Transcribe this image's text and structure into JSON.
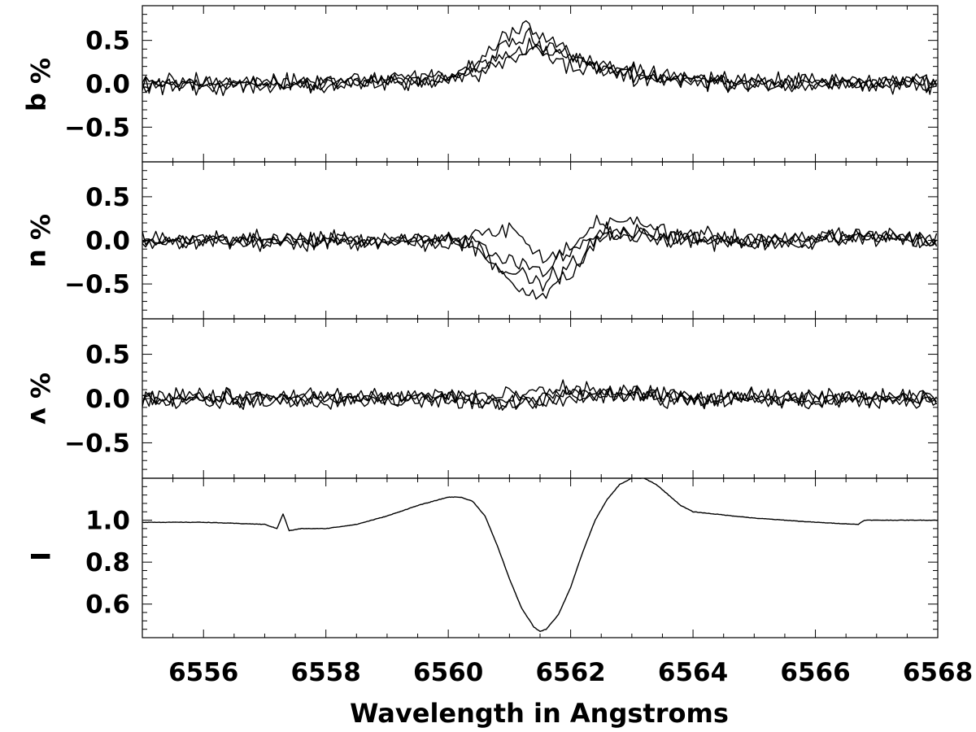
{
  "chart_data": [
    {
      "type": "line",
      "panel": "q",
      "ylabel": "% q",
      "xlim": [
        6555,
        6568
      ],
      "ylim": [
        -0.9,
        0.9
      ],
      "yticks": [
        -0.5,
        0.0,
        0.5
      ],
      "ytick_labels": [
        "−0.5",
        "0.0",
        "0.5"
      ],
      "feature": {
        "center": 6561.3,
        "sigma": 0.55,
        "peak_values": [
          0.55,
          0.45,
          0.7,
          0.38
        ]
      },
      "series": [
        {
          "x": [
            6555,
            6556,
            6557,
            6558,
            6559,
            6560,
            6560.5,
            6561,
            6561.3,
            6561.6,
            6562,
            6562.5,
            6563,
            6564,
            6565,
            6566,
            6567,
            6568
          ],
          "values": [
            0.0,
            0.0,
            0.0,
            0.02,
            0.05,
            0.08,
            0.2,
            0.45,
            0.55,
            0.4,
            0.2,
            0.2,
            0.12,
            0.05,
            0.02,
            0.0,
            0.0,
            0.0
          ]
        },
        {
          "x": [
            6555,
            6556,
            6557,
            6558,
            6559,
            6560,
            6560.5,
            6561,
            6561.3,
            6561.6,
            6562,
            6562.5,
            6563,
            6564,
            6565,
            6566,
            6567,
            6568
          ],
          "values": [
            0.0,
            0.0,
            0.02,
            0.0,
            0.03,
            0.05,
            0.15,
            0.35,
            0.45,
            0.42,
            0.3,
            0.18,
            0.1,
            0.05,
            0.0,
            0.0,
            0.0,
            0.0
          ]
        },
        {
          "x": [
            6555,
            6556,
            6557,
            6558,
            6559,
            6560,
            6560.5,
            6561,
            6561.3,
            6561.6,
            6562,
            6562.5,
            6563,
            6564,
            6565,
            6566,
            6567,
            6568
          ],
          "values": [
            0.0,
            0.0,
            0.0,
            0.0,
            0.02,
            0.06,
            0.25,
            0.6,
            0.7,
            0.55,
            0.3,
            0.15,
            0.08,
            0.04,
            0.0,
            0.0,
            0.0,
            0.0
          ]
        },
        {
          "x": [
            6555,
            6556,
            6557,
            6558,
            6559,
            6560,
            6560.5,
            6561,
            6561.3,
            6561.6,
            6562,
            6562.5,
            6563,
            6564,
            6565,
            6566,
            6567,
            6568
          ],
          "values": [
            0.0,
            0.0,
            0.0,
            0.0,
            0.02,
            0.04,
            0.1,
            0.25,
            0.38,
            0.4,
            0.32,
            0.2,
            0.12,
            0.05,
            0.02,
            0.0,
            0.0,
            0.0
          ]
        }
      ]
    },
    {
      "type": "line",
      "panel": "u",
      "ylabel": "% u",
      "xlim": [
        6555,
        6568
      ],
      "ylim": [
        -0.9,
        0.9
      ],
      "yticks": [
        -0.5,
        0.0,
        0.5
      ],
      "ytick_labels": [
        "−0.5",
        "0.0",
        "0.5"
      ],
      "series": [
        {
          "x": [
            6555,
            6556,
            6557,
            6558,
            6559,
            6560,
            6560.5,
            6561,
            6561.5,
            6562,
            6562.5,
            6563,
            6564,
            6565,
            6566,
            6567,
            6568
          ],
          "values": [
            0.0,
            0.0,
            0.0,
            0.0,
            0.0,
            0.0,
            -0.1,
            -0.45,
            -0.65,
            -0.4,
            0.05,
            0.05,
            0.0,
            0.0,
            0.0,
            0.05,
            0.0
          ]
        },
        {
          "x": [
            6555,
            6556,
            6557,
            6558,
            6559,
            6560,
            6560.5,
            6561,
            6561.5,
            6562,
            6562.5,
            6563,
            6564,
            6565,
            6566,
            6567,
            6568
          ],
          "values": [
            0.0,
            0.0,
            0.0,
            0.0,
            0.0,
            0.0,
            -0.1,
            -0.35,
            -0.5,
            -0.3,
            0.05,
            0.05,
            0.02,
            0.0,
            0.0,
            0.05,
            0.0
          ]
        },
        {
          "x": [
            6555,
            6556,
            6557,
            6558,
            6559,
            6560,
            6560.5,
            6561,
            6561.5,
            6562,
            6562.5,
            6563,
            6564,
            6565,
            6566,
            6567,
            6568
          ],
          "values": [
            0.0,
            0.0,
            0.0,
            0.0,
            0.0,
            0.0,
            0.05,
            0.15,
            -0.2,
            -0.1,
            0.25,
            0.2,
            0.05,
            0.0,
            0.0,
            0.05,
            0.0
          ]
        },
        {
          "x": [
            6555,
            6556,
            6557,
            6558,
            6559,
            6560,
            6560.5,
            6561,
            6561.5,
            6562,
            6562.5,
            6563,
            6564,
            6565,
            6566,
            6567,
            6568
          ],
          "values": [
            0.0,
            0.0,
            0.0,
            0.0,
            0.0,
            0.0,
            -0.05,
            -0.2,
            -0.35,
            -0.15,
            0.1,
            0.1,
            0.02,
            0.0,
            0.0,
            0.05,
            0.0
          ]
        }
      ]
    },
    {
      "type": "line",
      "panel": "v",
      "ylabel": "% v",
      "xlim": [
        6555,
        6568
      ],
      "ylim": [
        -0.9,
        0.9
      ],
      "yticks": [
        -0.5,
        0.0,
        0.5
      ],
      "ytick_labels": [
        "−0.5",
        "0.0",
        "0.5"
      ],
      "series": [
        {
          "x": [
            6555,
            6556,
            6557,
            6558,
            6559,
            6560,
            6561,
            6562,
            6563,
            6564,
            6565,
            6566,
            6567,
            6568
          ],
          "values": [
            0.0,
            0.0,
            0.0,
            0.0,
            0.0,
            0.02,
            -0.05,
            0.1,
            0.05,
            0.0,
            0.0,
            0.0,
            0.0,
            0.0
          ]
        },
        {
          "x": [
            6555,
            6556,
            6557,
            6558,
            6559,
            6560,
            6561,
            6562,
            6563,
            6564,
            6565,
            6566,
            6567,
            6568
          ],
          "values": [
            0.0,
            0.0,
            0.0,
            0.0,
            0.0,
            0.0,
            -0.08,
            0.05,
            0.05,
            0.0,
            0.0,
            0.0,
            0.0,
            0.0
          ]
        },
        {
          "x": [
            6555,
            6556,
            6557,
            6558,
            6559,
            6560,
            6561,
            6562,
            6563,
            6564,
            6565,
            6566,
            6567,
            6568
          ],
          "values": [
            0.0,
            0.0,
            0.0,
            0.0,
            0.0,
            0.05,
            0.02,
            0.1,
            0.08,
            0.0,
            0.0,
            0.0,
            0.0,
            0.0
          ]
        },
        {
          "x": [
            6555,
            6556,
            6557,
            6558,
            6559,
            6560,
            6561,
            6562,
            6563,
            6564,
            6565,
            6566,
            6567,
            6568
          ],
          "values": [
            0.0,
            0.0,
            0.0,
            0.0,
            0.0,
            0.0,
            -0.05,
            0.0,
            0.02,
            0.0,
            0.0,
            0.0,
            0.0,
            0.0
          ]
        }
      ]
    },
    {
      "type": "line",
      "panel": "I",
      "ylabel": "I",
      "xlabel": "Wavelength in Angstroms",
      "xlim": [
        6555,
        6568
      ],
      "ylim": [
        0.44,
        1.2
      ],
      "xticks": [
        6556,
        6558,
        6560,
        6562,
        6564,
        6566,
        6568
      ],
      "xtick_labels": [
        "6556",
        "6558",
        "6560",
        "6562",
        "6564",
        "6566",
        "6568"
      ],
      "yticks": [
        0.6,
        0.8,
        1.0
      ],
      "ytick_labels": [
        "0.6",
        "0.8",
        "1.0"
      ],
      "series": [
        {
          "x": [
            6555,
            6556,
            6557,
            6557.2,
            6557.3,
            6557.4,
            6557.6,
            6558,
            6558.5,
            6559,
            6559.5,
            6560,
            6560.2,
            6560.4,
            6560.6,
            6560.8,
            6561,
            6561.2,
            6561.4,
            6561.5,
            6561.6,
            6561.8,
            6562,
            6562.2,
            6562.4,
            6562.6,
            6562.8,
            6563,
            6563.2,
            6563.4,
            6563.6,
            6563.8,
            6564,
            6565,
            6566,
            6566.7,
            6566.8,
            6567,
            6568
          ],
          "values": [
            0.99,
            0.99,
            0.98,
            0.96,
            1.03,
            0.95,
            0.96,
            0.96,
            0.98,
            1.02,
            1.07,
            1.11,
            1.11,
            1.09,
            1.02,
            0.88,
            0.72,
            0.58,
            0.49,
            0.47,
            0.48,
            0.55,
            0.68,
            0.85,
            1.0,
            1.1,
            1.17,
            1.2,
            1.2,
            1.17,
            1.12,
            1.07,
            1.04,
            1.01,
            0.99,
            0.98,
            1.0,
            1.0,
            1.0
          ]
        }
      ]
    }
  ]
}
